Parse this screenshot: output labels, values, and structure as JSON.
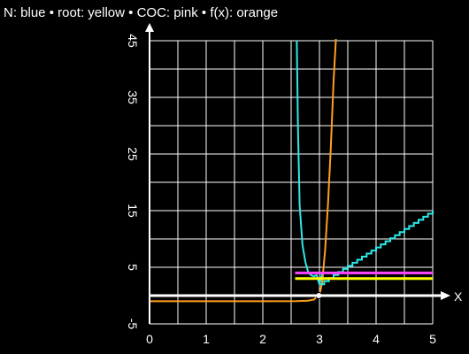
{
  "legend_text": "N: blue • root: yellow • COC: pink • f(x): orange",
  "chart_data": {
    "type": "line",
    "title": "N: blue • root: yellow • COC: pink • f(x): orange",
    "xlabel": "X",
    "ylabel": "",
    "xlim": [
      0,
      5
    ],
    "ylim": [
      -5,
      45
    ],
    "x_ticks": [
      0,
      1,
      2,
      3,
      4,
      5
    ],
    "y_ticks": [
      -5,
      5,
      15,
      25,
      35,
      45
    ],
    "grid": true,
    "background": "#000000",
    "grid_color": "#ffffff",
    "series": [
      {
        "name": "f(x)",
        "color": "#ff9f1c",
        "type": "line",
        "x": [
          0,
          1,
          2,
          2.6,
          2.8,
          2.9,
          2.95,
          3.0,
          3.05,
          3.1,
          3.15,
          3.2,
          3.25,
          3.3
        ],
        "y": [
          -1,
          -1,
          -1,
          -0.98,
          -0.9,
          -0.7,
          -0.3,
          0,
          2.5,
          8,
          16,
          26,
          38,
          47
        ]
      },
      {
        "name": "N",
        "color": "#2ee8e8",
        "type": "line",
        "x": [
          2.6,
          2.62,
          2.65,
          2.7,
          2.75,
          2.8,
          2.85,
          2.9,
          2.95,
          3.0,
          3.05
        ],
        "y": [
          45,
          30,
          16,
          9,
          6,
          4.2,
          3.6,
          3.4,
          3.6,
          2,
          4
        ]
      },
      {
        "name": "N",
        "color": "#2ee8e8",
        "type": "step",
        "x": [
          3.0,
          5.0
        ],
        "y": [
          2.0,
          15.0
        ],
        "steps": 24
      },
      {
        "name": "COC",
        "color": "#ff44ff",
        "type": "hline",
        "x": [
          2.57,
          5.0
        ],
        "y": [
          4.0,
          4.0
        ]
      },
      {
        "name": "root",
        "color": "#ffff00",
        "type": "hline",
        "x": [
          2.57,
          5.0
        ],
        "y": [
          3.0,
          3.0
        ]
      }
    ],
    "markers": [
      {
        "x": 2.99,
        "y": 0,
        "color": "#ffffff"
      }
    ]
  }
}
